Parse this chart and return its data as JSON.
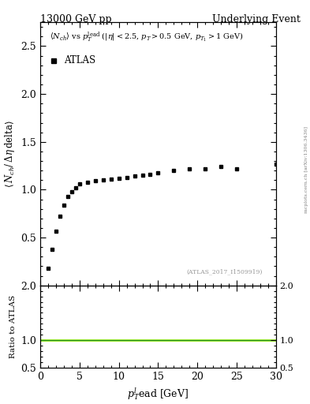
{
  "title_left": "13000 GeV pp",
  "title_right": "Underlying Event",
  "annotation": "(ATLAS_2017_I1509919)",
  "watermark": "mcplots.cern.ch [arXiv:1306.3436]",
  "legend_label": "ATLAS",
  "subplot_ylabel": "Ratio to ATLAS",
  "data_x": [
    1.0,
    1.5,
    2.0,
    2.5,
    3.0,
    3.5,
    4.0,
    4.5,
    5.0,
    6.0,
    7.0,
    8.0,
    9.0,
    10.0,
    11.0,
    12.0,
    13.0,
    14.0,
    15.0,
    17.0,
    19.0,
    21.0,
    23.0,
    25.0,
    30.0
  ],
  "data_y": [
    0.18,
    0.38,
    0.57,
    0.72,
    0.84,
    0.93,
    0.98,
    1.02,
    1.06,
    1.08,
    1.09,
    1.1,
    1.11,
    1.12,
    1.13,
    1.14,
    1.15,
    1.16,
    1.18,
    1.2,
    1.22,
    1.22,
    1.24,
    1.22,
    1.27
  ],
  "main_ylim": [
    0.0,
    2.75
  ],
  "main_yticks": [
    0.5,
    1.0,
    1.5,
    2.0,
    2.5
  ],
  "ratio_ylim": [
    0.5,
    2.0
  ],
  "ratio_yticks": [
    0.5,
    1.0,
    2.0
  ],
  "xlim": [
    0,
    30
  ],
  "xticks": [
    0,
    5,
    10,
    15,
    20,
    25,
    30
  ],
  "data_color": "#000000",
  "ratio_line_color": "#228B22",
  "ratio_band_color": "#aaff00",
  "ratio_band_alpha": 0.6
}
